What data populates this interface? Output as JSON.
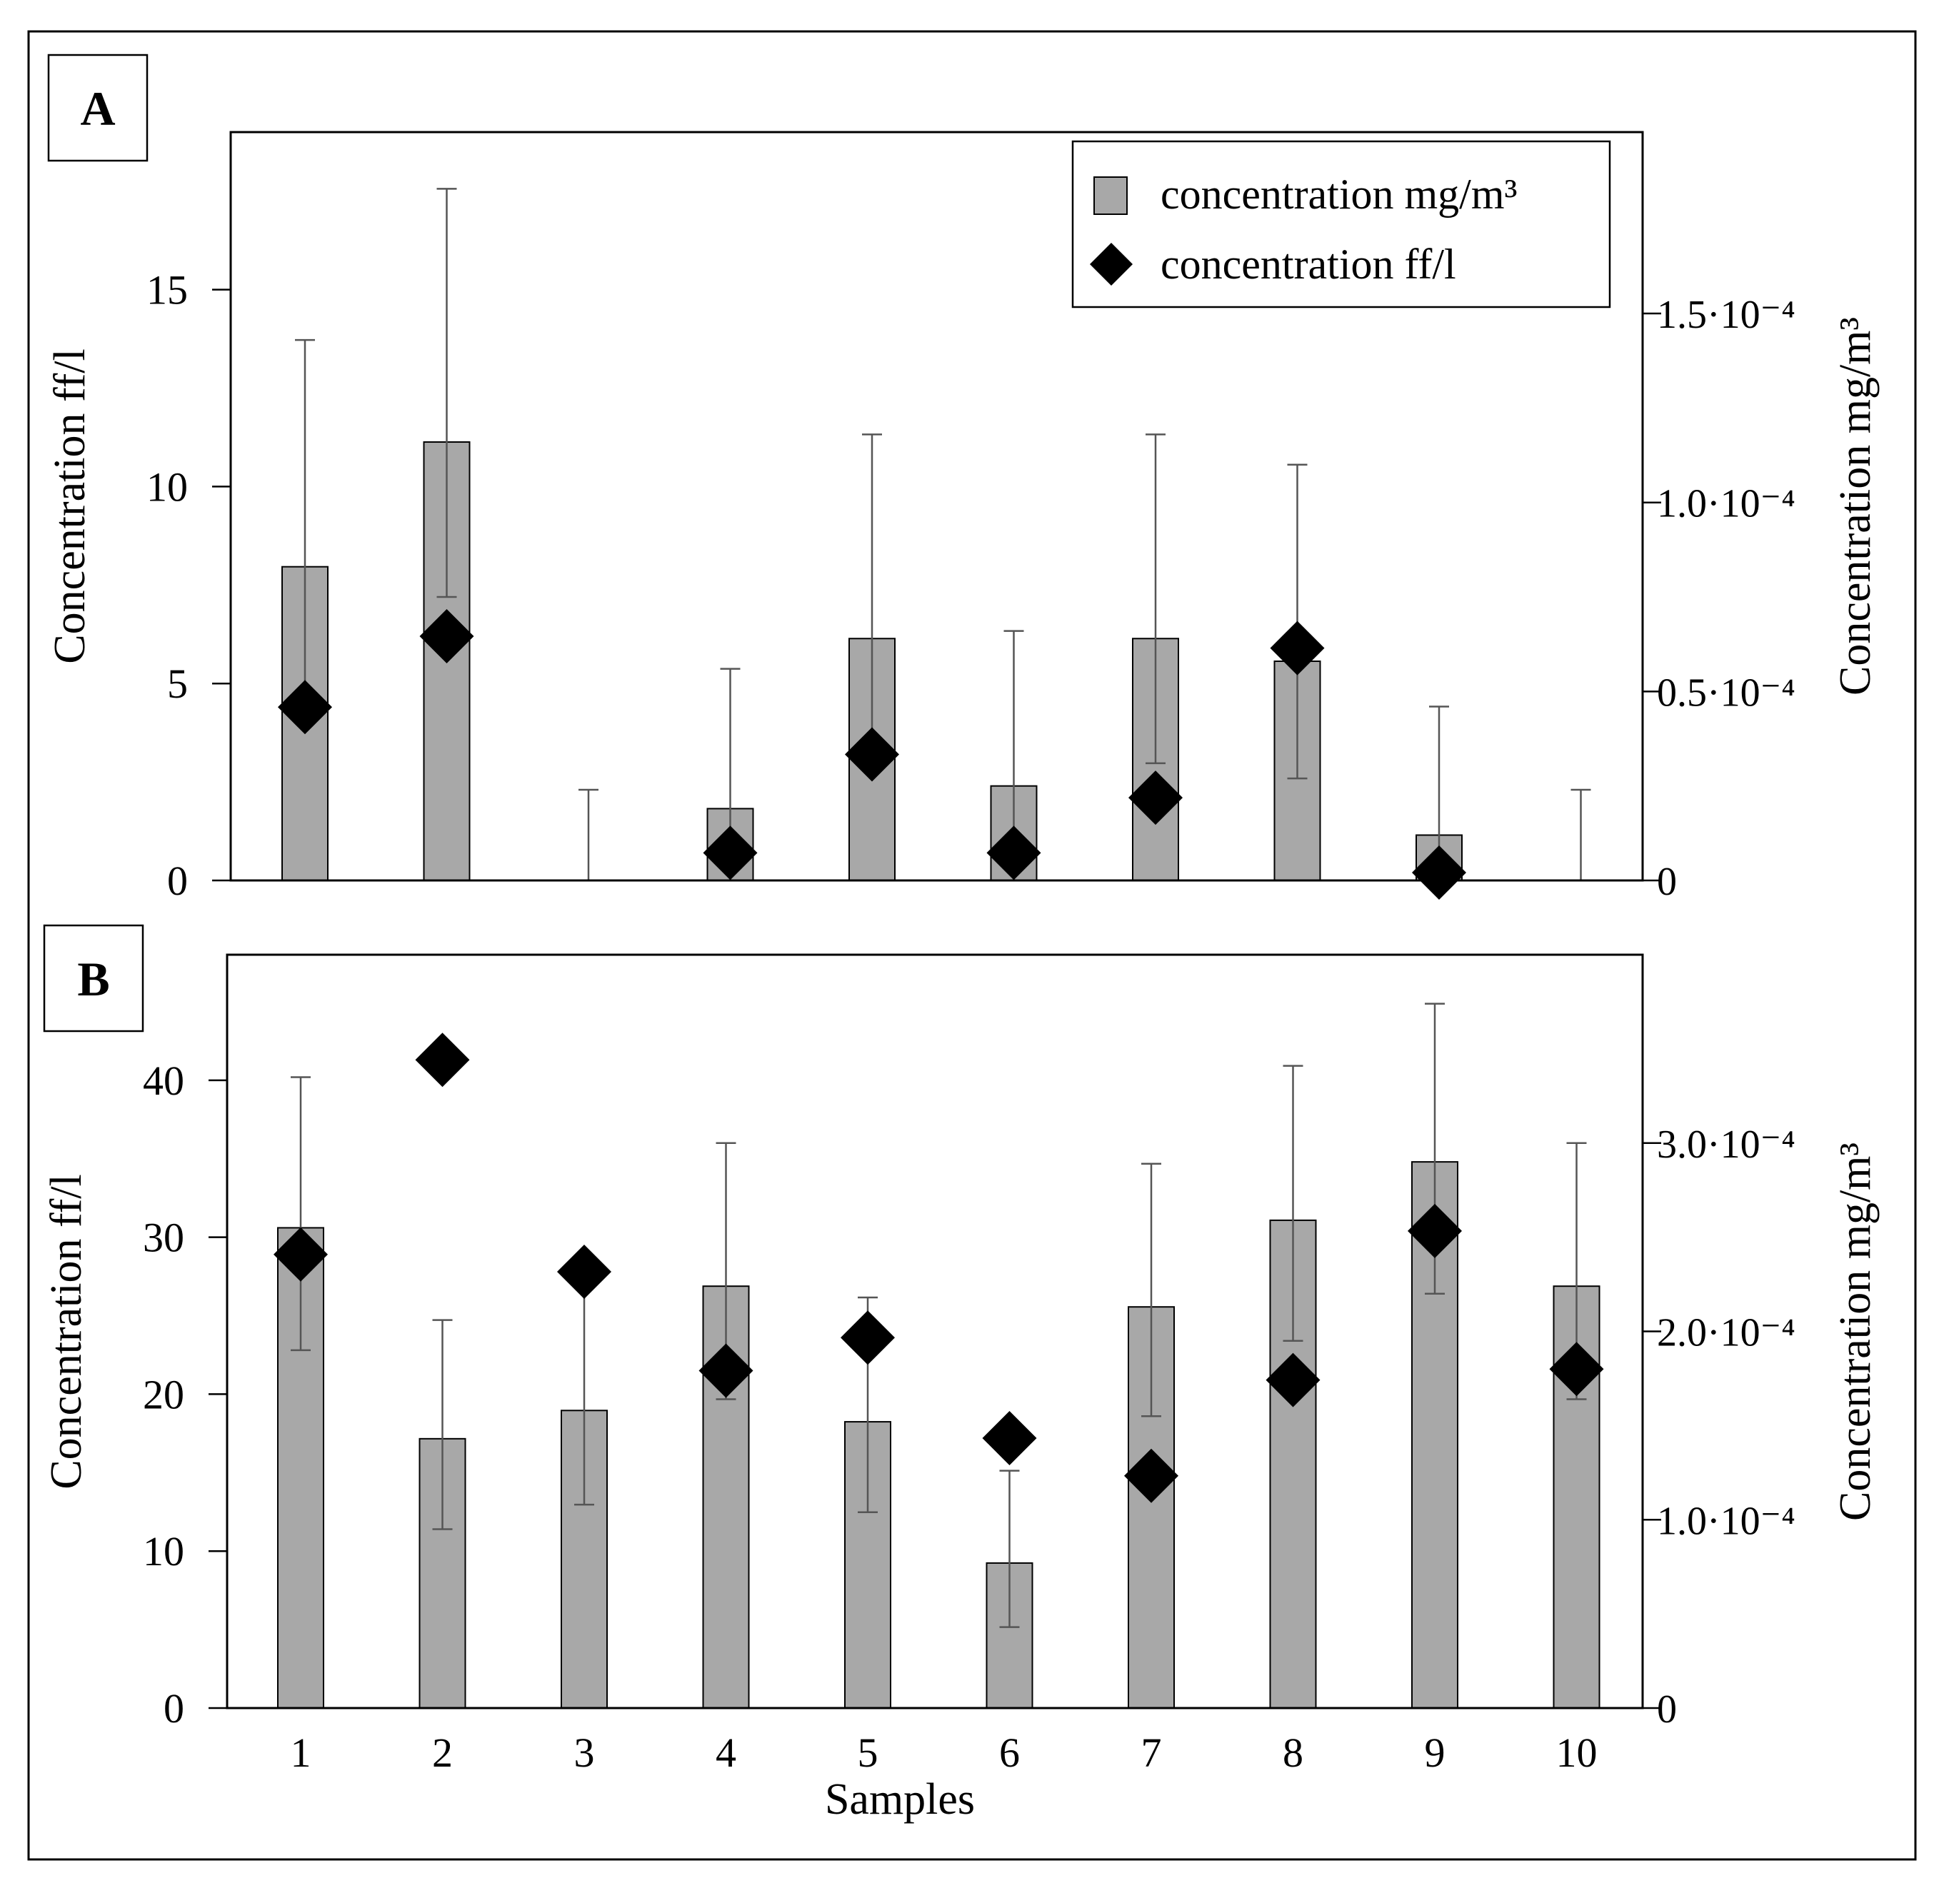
{
  "chart_data": [
    {
      "panel_label": "A",
      "type": "bar",
      "categories": [
        "1",
        "2",
        "3",
        "4",
        "5",
        "6",
        "7",
        "8",
        "9",
        "10"
      ],
      "y_left": {
        "label": "Concentration ff/l",
        "ylim": [
          0,
          19
        ],
        "ticks": [
          0,
          5,
          10,
          15
        ],
        "tick_labels": [
          "0",
          "5",
          "10",
          "15"
        ]
      },
      "y_right": {
        "label": "Concentration mg/m³",
        "ylim": [
          0,
          0.000198
        ],
        "ticks": [
          0,
          5e-05,
          0.0001,
          0.00015
        ],
        "tick_labels": [
          "0",
          "0.5·10⁻⁴",
          "1.0·10⁻⁴",
          "1.5·10⁻⁴"
        ]
      },
      "grid": false,
      "legend": {
        "position": "top-right",
        "entries": [
          "concentration mg/m³",
          "concentration ff/l"
        ]
      },
      "series": [
        {
          "name": "concentration mg/m³",
          "axis": "right",
          "mark": "bar",
          "color": "#a8a8a8",
          "values": [
            8.3e-05,
            0.000116,
            0,
            1.9e-05,
            6.4e-05,
            2.5e-05,
            6.4e-05,
            5.8e-05,
            1.2e-05,
            0
          ],
          "error_lower": [
            5e-05,
            7.5e-05,
            0,
            0,
            3.5e-05,
            0,
            3.1e-05,
            2.7e-05,
            0,
            0
          ],
          "error_upper": [
            0.000143,
            0.000183,
            2.4e-05,
            5.6e-05,
            0.000118,
            6.6e-05,
            0.000118,
            0.00011,
            4.6e-05,
            2.4e-05
          ]
        },
        {
          "name": "concentration ff/l",
          "axis": "left",
          "mark": "diamond",
          "color": "#000000",
          "values": [
            4.4,
            6.2,
            null,
            0.7,
            3.2,
            0.7,
            2.1,
            5.9,
            0.2,
            null
          ]
        }
      ]
    },
    {
      "panel_label": "B",
      "type": "bar",
      "categories": [
        "1",
        "2",
        "3",
        "4",
        "5",
        "6",
        "7",
        "8",
        "9",
        "10"
      ],
      "xlabel": "Samples",
      "y_left": {
        "label": "Concentration ff/l",
        "ylim": [
          0,
          48
        ],
        "ticks": [
          0,
          10,
          20,
          30,
          40
        ],
        "tick_labels": [
          "0",
          "10",
          "20",
          "30",
          "40"
        ]
      },
      "y_right": {
        "label": "Concentration mg/m³",
        "ylim": [
          0,
          0.0004
        ],
        "ticks": [
          0,
          0.0001,
          0.0002,
          0.0003
        ],
        "tick_labels": [
          "0",
          "1.0·10⁻⁴",
          "2.0·10⁻⁴",
          "3.0·10⁻⁴"
        ]
      },
      "grid": false,
      "series": [
        {
          "name": "concentration mg/m³",
          "axis": "right",
          "mark": "bar",
          "color": "#a8a8a8",
          "values": [
            0.000255,
            0.000143,
            0.000158,
            0.000224,
            0.000152,
            7.7e-05,
            0.000213,
            0.000259,
            0.00029,
            0.000224
          ],
          "error_lower": [
            0.00019,
            9.5e-05,
            0.000108,
            0.000164,
            0.000104,
            4.3e-05,
            0.000155,
            0.000195,
            0.00022,
            0.000164
          ],
          "error_upper": [
            0.000335,
            0.000206,
            0.000224,
            0.0003,
            0.000218,
            0.000126,
            0.000289,
            0.000341,
            0.000374,
            0.0003
          ]
        },
        {
          "name": "concentration ff/l",
          "axis": "left",
          "mark": "diamond",
          "color": "#000000",
          "values": [
            28.9,
            41.3,
            27.8,
            21.5,
            23.6,
            17.2,
            14.8,
            20.9,
            30.4,
            21.6
          ]
        }
      ]
    }
  ]
}
